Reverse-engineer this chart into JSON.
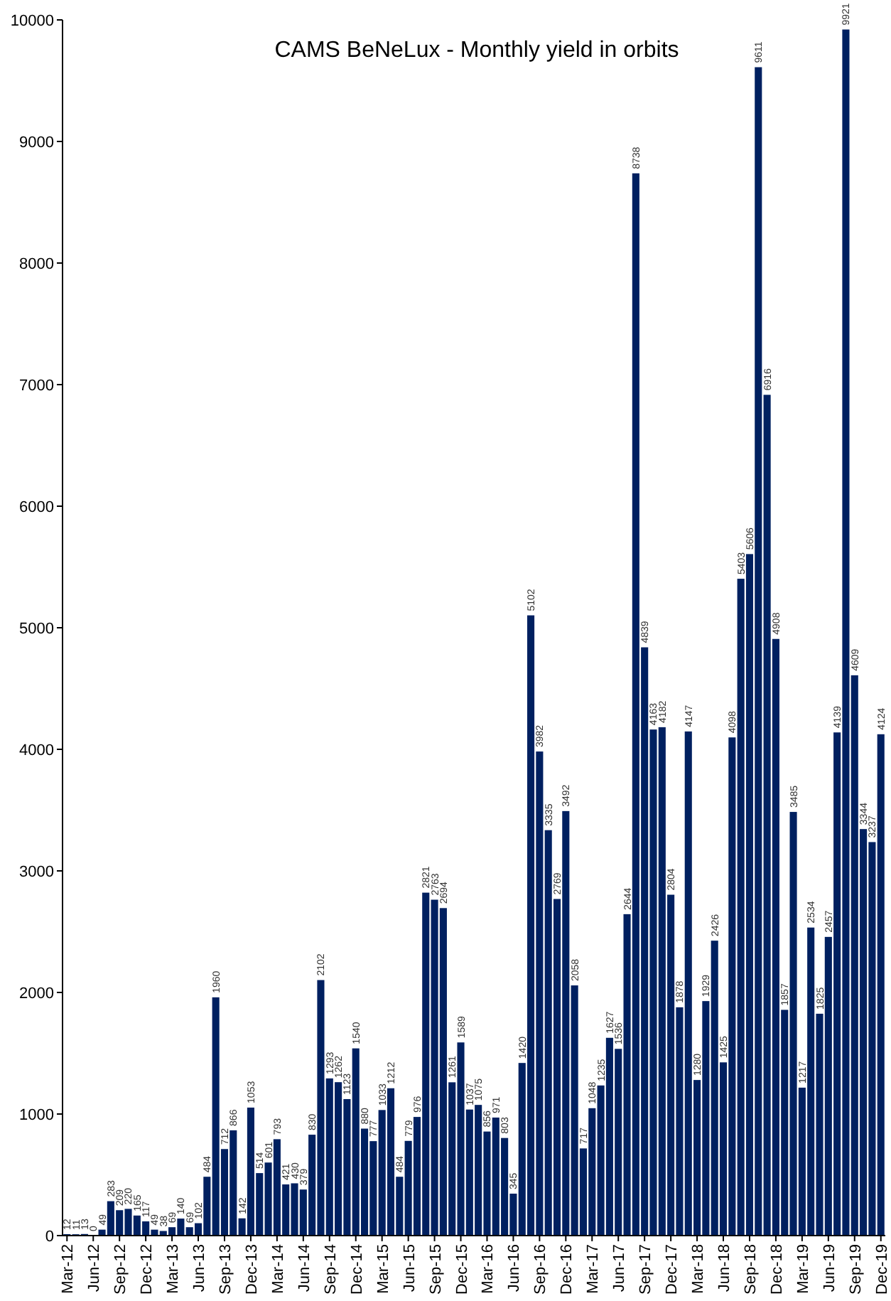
{
  "chart_data": {
    "type": "bar",
    "title": "CAMS BeNeLux - Monthly yield in orbits",
    "categories": [
      "Mar-12",
      null,
      null,
      "Jun-12",
      null,
      null,
      "Sep-12",
      null,
      null,
      "Dec-12",
      null,
      null,
      "Mar-13",
      null,
      null,
      "Jun-13",
      null,
      null,
      "Sep-13",
      null,
      null,
      "Dec-13",
      null,
      null,
      "Mar-14",
      null,
      null,
      "Jun-14",
      null,
      null,
      "Sep-14",
      null,
      null,
      "Dec-14",
      null,
      null,
      "Mar-15",
      null,
      null,
      "Jun-15",
      null,
      null,
      "Sep-15",
      null,
      null,
      "Dec-15",
      null,
      null,
      "Mar-16",
      null,
      null,
      "Jun-16",
      null,
      null,
      "Sep-16",
      null,
      null,
      "Dec-16",
      null,
      null,
      "Mar-17",
      null,
      null,
      "Jun-17",
      null,
      null,
      "Sep-17",
      null,
      null,
      "Dec-17",
      null,
      null,
      "Mar-18",
      null,
      null,
      "Jun-18",
      null,
      null,
      "Sep-18",
      null,
      null,
      "Dec-18",
      null,
      null,
      "Mar-19",
      null,
      null,
      "Jun-19",
      null,
      null,
      "Sep-19",
      null,
      null,
      "Dec-19"
    ],
    "values": [
      12,
      11,
      13,
      0,
      49,
      283,
      209,
      220,
      165,
      117,
      49,
      38,
      69,
      140,
      69,
      102,
      484,
      1960,
      712,
      866,
      142,
      1053,
      514,
      601,
      793,
      421,
      430,
      379,
      830,
      2102,
      1293,
      1262,
      1123,
      1540,
      880,
      777,
      1033,
      1212,
      484,
      779,
      976,
      2821,
      2763,
      2694,
      1261,
      1589,
      1037,
      1075,
      856,
      971,
      803,
      345,
      1420,
      5102,
      3982,
      3335,
      2769,
      3492,
      2058,
      717,
      1048,
      1235,
      1627,
      1536,
      2644,
      8738,
      4839,
      4163,
      4182,
      2804,
      1878,
      4147,
      1280,
      1929,
      2426,
      1425,
      4098,
      5403,
      5606,
      9611,
      6916,
      4908,
      1857,
      3485,
      1217,
      2534,
      1825,
      2457,
      4139,
      9921,
      4609,
      3344,
      3237,
      4124
    ],
    "color": "#002060",
    "data_labels": true,
    "ylim": [
      0,
      10000
    ],
    "yticks": [
      0,
      1000,
      2000,
      3000,
      4000,
      5000,
      6000,
      7000,
      8000,
      9000,
      10000
    ]
  }
}
